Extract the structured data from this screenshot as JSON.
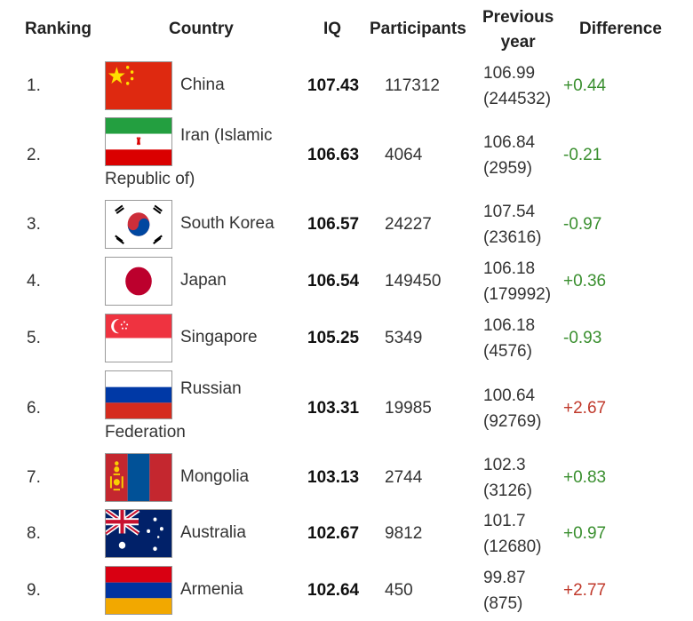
{
  "headers": {
    "ranking": "Ranking",
    "country": "Country",
    "iq": "IQ",
    "participants": "Participants",
    "previous_line1": "Previous",
    "previous_line2": "year",
    "difference": "Difference"
  },
  "rows": [
    {
      "rank": "1.",
      "country_line1": "China",
      "country_line2": "",
      "flag": "china-flag",
      "iq": "107.43",
      "participants": "117312",
      "prev_iq": "106.99",
      "prev_participants": "(244532)",
      "difference": "+0.44",
      "difference_color": "#3a8f2f"
    },
    {
      "rank": "2.",
      "country_line1": "Iran (Islamic",
      "country_line2": "Republic of)",
      "flag": "iran-flag",
      "iq": "106.63",
      "participants": "4064",
      "prev_iq": "106.84",
      "prev_participants": "(2959)",
      "difference": "-0.21",
      "difference_color": "#3a8f2f"
    },
    {
      "rank": "3.",
      "country_line1": "South Korea",
      "country_line2": "",
      "flag": "south-korea-flag",
      "iq": "106.57",
      "participants": "24227",
      "prev_iq": "107.54",
      "prev_participants": "(23616)",
      "difference": "-0.97",
      "difference_color": "#3a8f2f"
    },
    {
      "rank": "4.",
      "country_line1": "Japan",
      "country_line2": "",
      "flag": "japan-flag",
      "iq": "106.54",
      "participants": "149450",
      "prev_iq": "106.18",
      "prev_participants": "(179992)",
      "difference": "+0.36",
      "difference_color": "#3a8f2f"
    },
    {
      "rank": "5.",
      "country_line1": "Singapore",
      "country_line2": "",
      "flag": "singapore-flag",
      "iq": "105.25",
      "participants": "5349",
      "prev_iq": "106.18",
      "prev_participants": "(4576)",
      "difference": "-0.93",
      "difference_color": "#3a8f2f"
    },
    {
      "rank": "6.",
      "country_line1": "Russian",
      "country_line2": "Federation",
      "flag": "russia-flag",
      "iq": "103.31",
      "participants": "19985",
      "prev_iq": "100.64",
      "prev_participants": "(92769)",
      "difference": "+2.67",
      "difference_color": "#c0392b"
    },
    {
      "rank": "7.",
      "country_line1": "Mongolia",
      "country_line2": "",
      "flag": "mongolia-flag",
      "iq": "103.13",
      "participants": "2744",
      "prev_iq": "102.3",
      "prev_participants": "(3126)",
      "difference": "+0.83",
      "difference_color": "#3a8f2f"
    },
    {
      "rank": "8.",
      "country_line1": "Australia",
      "country_line2": "",
      "flag": "australia-flag",
      "iq": "102.67",
      "participants": "9812",
      "prev_iq": "101.7",
      "prev_participants": "(12680)",
      "difference": "+0.97",
      "difference_color": "#3a8f2f"
    },
    {
      "rank": "9.",
      "country_line1": "Armenia",
      "country_line2": "",
      "flag": "armenia-flag",
      "iq": "102.64",
      "participants": "450",
      "prev_iq": "99.87",
      "prev_participants": "(875)",
      "difference": "+2.77",
      "difference_color": "#c0392b"
    }
  ]
}
